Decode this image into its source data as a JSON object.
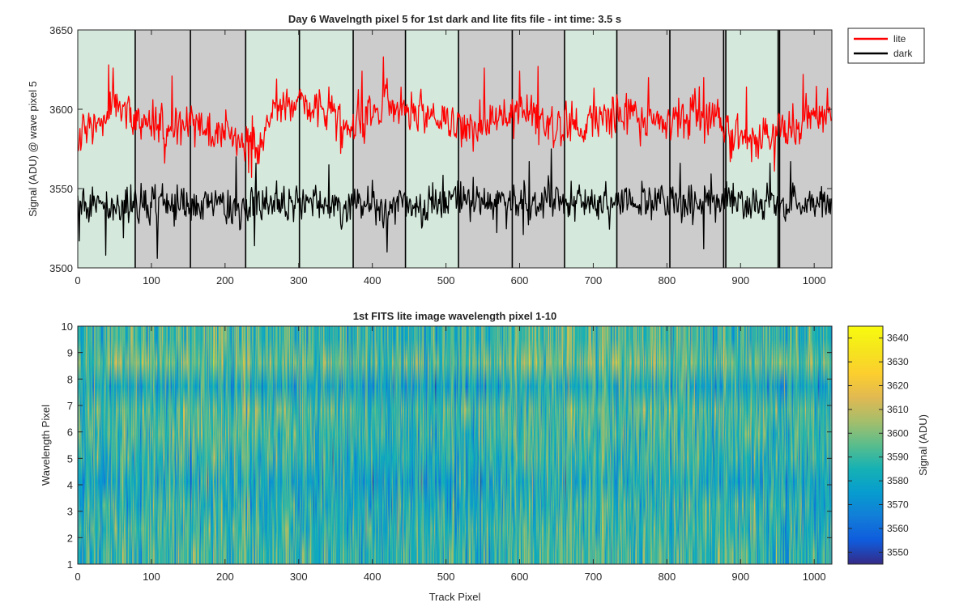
{
  "window": {
    "background": "#ffffff"
  },
  "chart_data": [
    {
      "type": "line",
      "title": "Day 6 Wavelngth pixel 5 for 1st dark and lite fits file - int time: 3.5 s",
      "xlabel": "",
      "ylabel": "Signal (ADU) @ wave pixel 5",
      "xlim": [
        0,
        1024
      ],
      "ylim": [
        3500,
        3650
      ],
      "xticks": [
        "0",
        "100",
        "200",
        "300",
        "400",
        "500",
        "600",
        "700",
        "800",
        "900",
        "1000"
      ],
      "yticks": [
        "3500",
        "3550",
        "3600",
        "3650"
      ],
      "grid": false,
      "legend": {
        "placement": "outside-top-right",
        "entries": [
          "lite",
          "dark"
        ]
      },
      "background_bands": {
        "colors": {
          "green": "#d4e8dc",
          "gray": "#cccccc"
        },
        "boundaries": [
          0,
          78,
          153,
          228,
          301,
          374,
          445,
          517,
          590,
          661,
          732,
          804,
          877,
          880,
          951,
          953,
          1024
        ],
        "pattern": [
          "green",
          "gray",
          "gray",
          "green",
          "green",
          "gray",
          "green",
          "gray",
          "gray",
          "green",
          "gray",
          "gray",
          "gray",
          "green",
          "gray",
          "gray"
        ]
      },
      "series": [
        {
          "name": "lite",
          "color": "#ff0000",
          "n_points": 1024,
          "x_step": 1,
          "trend_x": [
            0,
            15,
            40,
            60,
            80,
            120,
            160,
            200,
            240,
            260,
            280,
            300,
            340,
            360,
            400,
            420,
            450,
            480,
            520,
            560,
            600,
            640,
            680,
            700,
            740,
            780,
            820,
            840,
            880,
            900,
            940,
            980,
            1000,
            1024
          ],
          "trend_y": [
            3578,
            3587,
            3595,
            3603,
            3592,
            3588,
            3588,
            3585,
            3580,
            3592,
            3600,
            3605,
            3598,
            3588,
            3596,
            3606,
            3598,
            3594,
            3588,
            3594,
            3598,
            3591,
            3586,
            3596,
            3597,
            3593,
            3595,
            3600,
            3591,
            3581,
            3584,
            3590,
            3598,
            3595
          ],
          "noise_amplitude": 6.5,
          "spike_amplitude": 11,
          "spikes": [
            [
              42,
              3628
            ],
            [
              48,
              3626
            ],
            [
              128,
              3621
            ],
            [
              270,
              3619
            ],
            [
              341,
              3614
            ],
            [
              386,
              3624
            ],
            [
              415,
              3633
            ],
            [
              552,
              3626
            ],
            [
              600,
              3624
            ],
            [
              625,
              3627
            ],
            [
              775,
              3620
            ],
            [
              850,
              3620
            ],
            [
              908,
              3614
            ],
            [
              985,
              3622
            ],
            [
              236,
              3557
            ],
            [
              232,
              3560
            ],
            [
              118,
              3566
            ],
            [
              915,
              3567
            ],
            [
              946,
              3561
            ]
          ]
        },
        {
          "name": "dark",
          "color": "#000000",
          "n_points": 1024,
          "x_step": 1,
          "trend_x": [
            0,
            100,
            200,
            300,
            400,
            500,
            600,
            700,
            800,
            900,
            1024
          ],
          "trend_y": [
            3540,
            3540,
            3538,
            3541,
            3540,
            3542,
            3541,
            3541,
            3542,
            3540,
            3540
          ],
          "noise_amplitude": 6,
          "spike_amplitude": 9,
          "spikes": [
            [
              2,
              3517
            ],
            [
              38,
              3508
            ],
            [
              62,
              3519
            ],
            [
              108,
              3506
            ],
            [
              215,
              3570
            ],
            [
              240,
              3514
            ],
            [
              242,
              3566
            ],
            [
              341,
              3565
            ],
            [
              420,
              3510
            ],
            [
              605,
              3521
            ],
            [
              613,
              3567
            ],
            [
              643,
              3575
            ],
            [
              818,
              3566
            ],
            [
              850,
              3512
            ],
            [
              940,
              3566
            ],
            [
              968,
              3567
            ]
          ]
        }
      ]
    },
    {
      "type": "heatmap",
      "title": "1st FITS lite image wavelength pixel 1-10",
      "xlabel": "Track Pixel",
      "ylabel": "Wavelength Pixel",
      "xlim": [
        0,
        1024
      ],
      "ylim": [
        1,
        10
      ],
      "xticks": [
        "0",
        "100",
        "200",
        "300",
        "400",
        "500",
        "600",
        "700",
        "800",
        "900",
        "1000"
      ],
      "yticks": [
        "1",
        "2",
        "3",
        "4",
        "5",
        "6",
        "7",
        "8",
        "9",
        "10"
      ],
      "rows": 10,
      "cols": 1024,
      "row_means": [
        3589,
        3588,
        3586,
        3582,
        3587,
        3591,
        3592,
        3582,
        3596,
        3590
      ],
      "noise_amplitude": 13,
      "colormap": "parula",
      "colorbar": {
        "label": "Signal (ADU)",
        "range": [
          3545,
          3645
        ],
        "ticks": [
          "3550",
          "3560",
          "3570",
          "3580",
          "3590",
          "3600",
          "3610",
          "3620",
          "3630",
          "3640"
        ]
      }
    }
  ]
}
